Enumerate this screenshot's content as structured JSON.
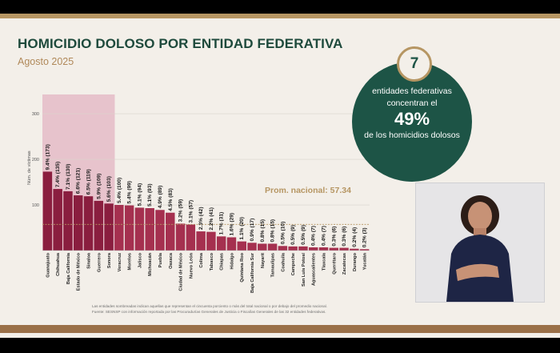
{
  "header": {
    "title": "HOMICIDIO DOLOSO POR ENTIDAD FEDERATIVA",
    "subtitle": "Agosto 2025"
  },
  "colors": {
    "bar_dark": "#8a1e3f",
    "bar_light": "#a5304f",
    "highlight_band": "#e7c3cc",
    "accent_green": "#1d5446",
    "accent_gold": "#b69663",
    "average_line": "#b69663"
  },
  "stat": {
    "number": "7",
    "line1": "entidades federativas",
    "line2": "concentran el",
    "percent": "49%",
    "line3": "de los homicidios dolosos"
  },
  "footnote": {
    "line1": "Las entidades sombreadas indican aquellas que representan el cincuenta porciento o más del total nacional o por debajo del promedio nacional.",
    "line2": "Fuente: SESNSP con información reportada por las Procuradurías Generales de Justicia o Fiscalías Generales de las 32 entidades federativas."
  },
  "chart_data": {
    "type": "bar",
    "ylabel": "Núm. de víctimas",
    "ylim": [
      0,
      330
    ],
    "yticks": [
      100,
      200,
      300
    ],
    "average": 57.34,
    "average_label": "Prom. nacional: 57.34",
    "highlighted_count": 7,
    "categories": [
      "Guanajuato",
      "Chihuahua",
      "Baja California",
      "Estado de México",
      "Sinaloa",
      "Guerrero",
      "Sonora",
      "Veracruz",
      "Morelos",
      "Jalisco",
      "Michoacán",
      "Puebla",
      "Oaxaca",
      "Ciudad de México",
      "Nuevo León",
      "Colima",
      "Tabasco",
      "Chiapas",
      "Hidalgo",
      "Quintana Roo",
      "Baja California Sur",
      "Nayarit",
      "Tamaulipas",
      "Coahuila",
      "Campeche",
      "San Luis Potosí",
      "Aguascalientes",
      "Tlaxcala",
      "Querétaro",
      "Zacatecas",
      "Durango",
      "Yucatán"
    ],
    "values": [
      173,
      135,
      130,
      121,
      119,
      109,
      103,
      100,
      99,
      94,
      93,
      89,
      83,
      59,
      57,
      42,
      41,
      31,
      29,
      20,
      17,
      15,
      15,
      10,
      9,
      9,
      7,
      7,
      6,
      6,
      4,
      3
    ],
    "data_labels": [
      "9.4% (173)",
      "7.4% (135)",
      "7.1% (130)",
      "6.6% (121)",
      "6.5% (119)",
      "5.9% (109)",
      "5.6% (103)",
      "5.4% (100)",
      "5.4% (99)",
      "5.1% (94)",
      "5.1% (93)",
      "4.9% (89)",
      "4.5% (83)",
      "3.2% (59)",
      "3.1% (57)",
      "2.3% (42)",
      "2.2% (41)",
      "1.7% (31)",
      "1.6% (29)",
      "1.1% (20)",
      "0.9% (17)",
      "0.8% (15)",
      "0.8% (15)",
      "0.5% (10)",
      "0.5% (9)",
      "0.5% (9)",
      "0.4% (7)",
      "0.4% (7)",
      "0.3% (6)",
      "0.3% (6)",
      "0.2% (4)",
      "0.2% (3)"
    ]
  }
}
